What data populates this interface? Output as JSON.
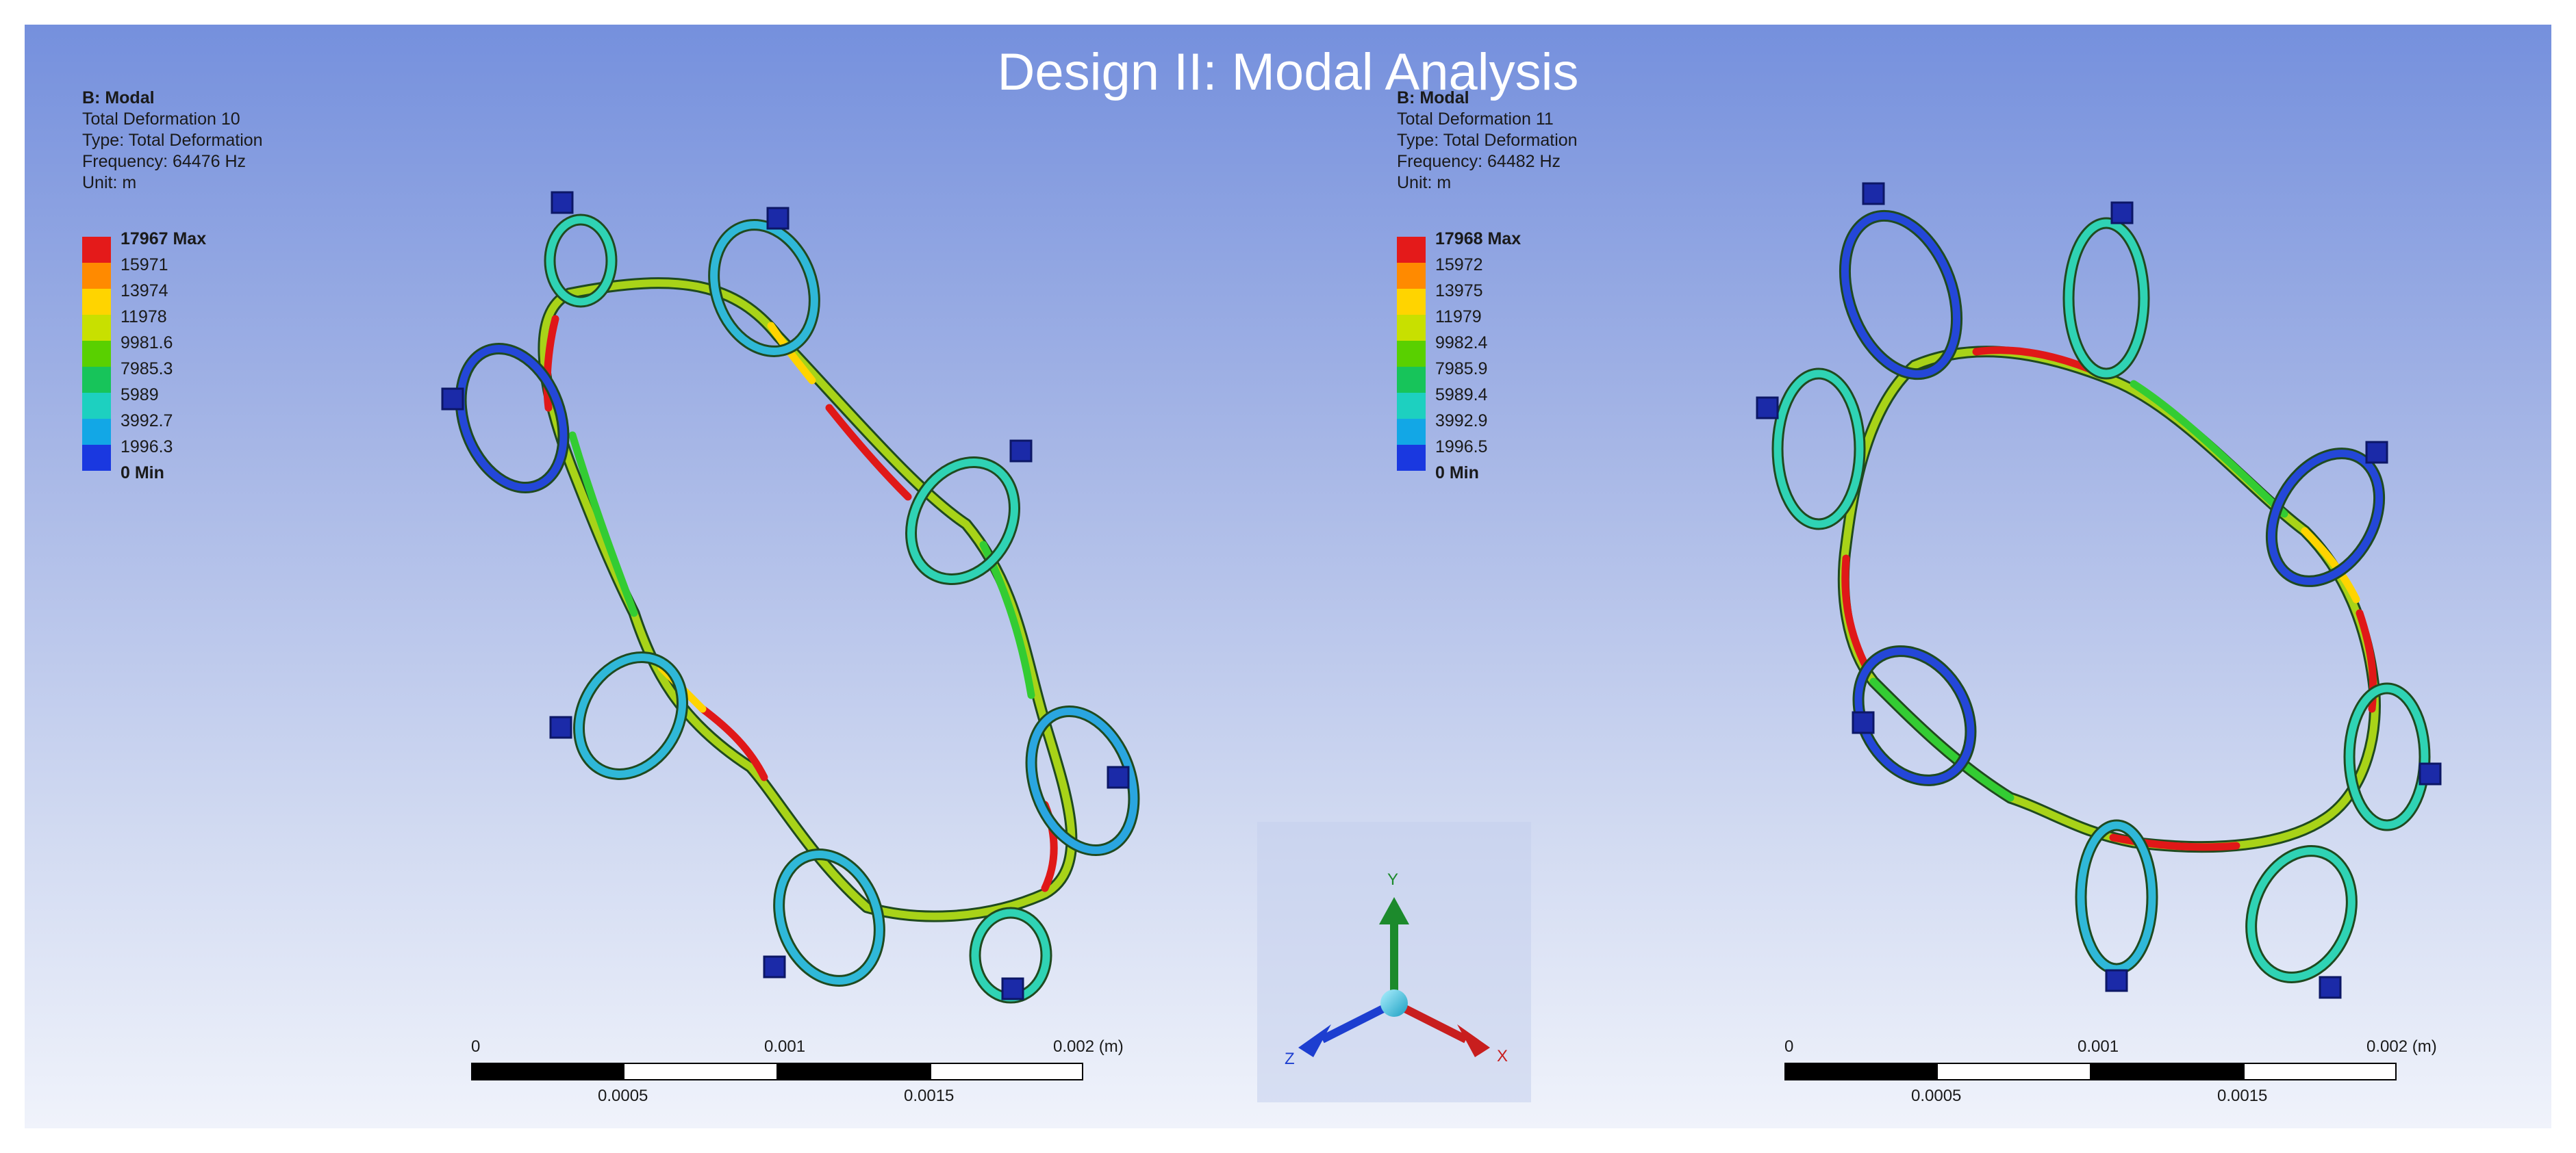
{
  "title": "Design II: Modal Analysis",
  "panels": [
    {
      "header": "B: Modal",
      "lines": [
        "Total Deformation 10",
        "Type: Total Deformation",
        "Frequency: 64476 Hz",
        "Unit: m"
      ],
      "legend": [
        "17967 Max",
        "15971",
        "13974",
        "11978",
        "9981.6",
        "7985.3",
        "5989",
        "3992.7",
        "1996.3",
        "0 Min"
      ]
    },
    {
      "header": "B: Modal",
      "lines": [
        "Total Deformation 11",
        "Type: Total Deformation",
        "Frequency: 64482 Hz",
        "Unit: m"
      ],
      "legend": [
        "17968 Max",
        "15972",
        "13975",
        "11979",
        "9982.4",
        "7985.9",
        "5989.4",
        "3992.9",
        "1996.5",
        "0 Min"
      ]
    }
  ],
  "legend_colors": [
    "#e41a1a",
    "#ff8a00",
    "#ffd400",
    "#c8e000",
    "#59d000",
    "#17c45a",
    "#1dd0c0",
    "#12a7e6",
    "#1a38e0"
  ],
  "scale": {
    "top_labels": [
      "0",
      "0.001",
      "0.002 (m)"
    ],
    "bottom_labels": [
      "0.0005",
      "0.0015"
    ]
  },
  "triad": {
    "y": "Y",
    "x": "X",
    "z": "Z"
  }
}
